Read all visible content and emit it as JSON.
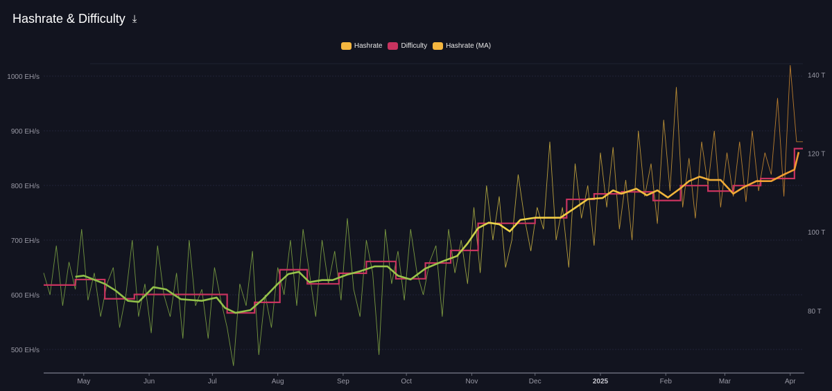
{
  "header": {
    "title": "Hashrate & Difficulty",
    "download_icon": "download-icon"
  },
  "colors": {
    "hashrate": "#f4b63f",
    "difficulty": "#c8335f",
    "ma": "#f4b63f",
    "early": "#8fbf4a",
    "mid": "#f0d84a",
    "late": "#f09a30"
  },
  "chart_data": {
    "type": "line",
    "title": "Hashrate & Difficulty",
    "start_date": "2024-04-12",
    "x_unit": "days since start_date",
    "legend": [
      "Hashrate",
      "Difficulty",
      "Hashrate (MA)"
    ],
    "legend_position": "top-center",
    "x_ticks": [
      {
        "label": "May",
        "day": 19
      },
      {
        "label": "Jun",
        "day": 50
      },
      {
        "label": "Jul",
        "day": 80
      },
      {
        "label": "Aug",
        "day": 111
      },
      {
        "label": "Sep",
        "day": 142
      },
      {
        "label": "Oct",
        "day": 172
      },
      {
        "label": "Nov",
        "day": 203
      },
      {
        "label": "Dec",
        "day": 233
      },
      {
        "label": "2025",
        "day": 264,
        "bold": true
      },
      {
        "label": "Feb",
        "day": 295
      },
      {
        "label": "Mar",
        "day": 323
      },
      {
        "label": "Apr",
        "day": 354
      }
    ],
    "y_left": {
      "label": "EH/s",
      "ticks": [
        "500 EH/s",
        "600 EH/s",
        "700 EH/s",
        "800 EH/s",
        "900 EH/s",
        "1000 EH/s"
      ],
      "tick_values": [
        500,
        600,
        700,
        800,
        900,
        1000
      ],
      "range": [
        450,
        1030
      ]
    },
    "y_right": {
      "label": "T",
      "ticks": [
        "80 T",
        "100 T",
        "120 T",
        "140 T"
      ],
      "tick_values": [
        80,
        100,
        120,
        140
      ],
      "range": [
        71,
        140.3
      ]
    },
    "grid": true,
    "hashrate": {
      "start_day": 0,
      "step_days": 3,
      "values": [
        640,
        600,
        690,
        580,
        660,
        610,
        720,
        590,
        640,
        560,
        620,
        650,
        540,
        600,
        700,
        560,
        620,
        530,
        690,
        600,
        560,
        640,
        520,
        700,
        580,
        610,
        520,
        650,
        590,
        540,
        470,
        620,
        580,
        680,
        490,
        600,
        540,
        650,
        600,
        700,
        580,
        720,
        640,
        560,
        700,
        620,
        680,
        590,
        740,
        610,
        560,
        700,
        640,
        490,
        720,
        620,
        680,
        590,
        720,
        640,
        600,
        660,
        690,
        560,
        720,
        640,
        700,
        620,
        760,
        640,
        800,
        700,
        780,
        650,
        700,
        820,
        740,
        680,
        760,
        720,
        880,
        700,
        760,
        650,
        840,
        740,
        800,
        690,
        860,
        760,
        870,
        720,
        810,
        700,
        900,
        780,
        840,
        730,
        920,
        790,
        980,
        760,
        850,
        740,
        880,
        800,
        900,
        760,
        860,
        780,
        880,
        770,
        900,
        790,
        860,
        820,
        960,
        780,
        1020,
        880,
        880
      ]
    },
    "hashrate_ma": {
      "days": [
        15,
        19,
        29,
        34,
        40,
        45,
        52,
        58,
        65,
        75,
        82,
        86,
        91,
        98,
        104,
        111,
        116,
        121,
        126,
        132,
        137,
        144,
        150,
        157,
        163,
        168,
        174,
        181,
        189,
        196,
        201,
        206,
        211,
        216,
        221,
        226,
        233,
        239,
        245,
        252,
        258,
        265,
        270,
        274,
        281,
        286,
        291,
        296,
        302,
        306,
        311,
        316,
        321,
        327,
        332,
        338,
        345,
        351,
        356,
        358
      ],
      "values": [
        633,
        635,
        620,
        608,
        589,
        587,
        614,
        610,
        592,
        589,
        595,
        576,
        567,
        572,
        592,
        620,
        638,
        642,
        623,
        627,
        627,
        637,
        643,
        652,
        652,
        635,
        628,
        648,
        661,
        671,
        694,
        722,
        732,
        729,
        716,
        737,
        741,
        741,
        741,
        759,
        775,
        777,
        791,
        785,
        794,
        782,
        791,
        778,
        795,
        808,
        816,
        810,
        810,
        785,
        797,
        808,
        808,
        820,
        829,
        861
      ]
    },
    "difficulty": {
      "steps": [
        [
          0,
          86.5
        ],
        [
          15,
          87.9
        ],
        [
          29,
          83.0
        ],
        [
          43,
          84.1
        ],
        [
          87,
          79.4
        ],
        [
          100,
          82.1
        ],
        [
          112,
          90.4
        ],
        [
          125,
          86.8
        ],
        [
          140,
          89.5
        ],
        [
          153,
          92.5
        ],
        [
          167,
          88.1
        ],
        [
          181,
          92.1
        ],
        [
          193,
          95.3
        ],
        [
          206,
          102.2
        ],
        [
          233,
          103.6
        ],
        [
          248,
          108.3
        ],
        [
          261,
          109.7
        ],
        [
          274,
          110.2
        ],
        [
          289,
          108.0
        ],
        [
          302,
          111.8
        ],
        [
          315,
          110.4
        ],
        [
          327,
          111.8
        ],
        [
          340,
          113.6
        ],
        [
          356,
          121.2
        ],
        [
          360,
          121.2
        ]
      ]
    }
  }
}
